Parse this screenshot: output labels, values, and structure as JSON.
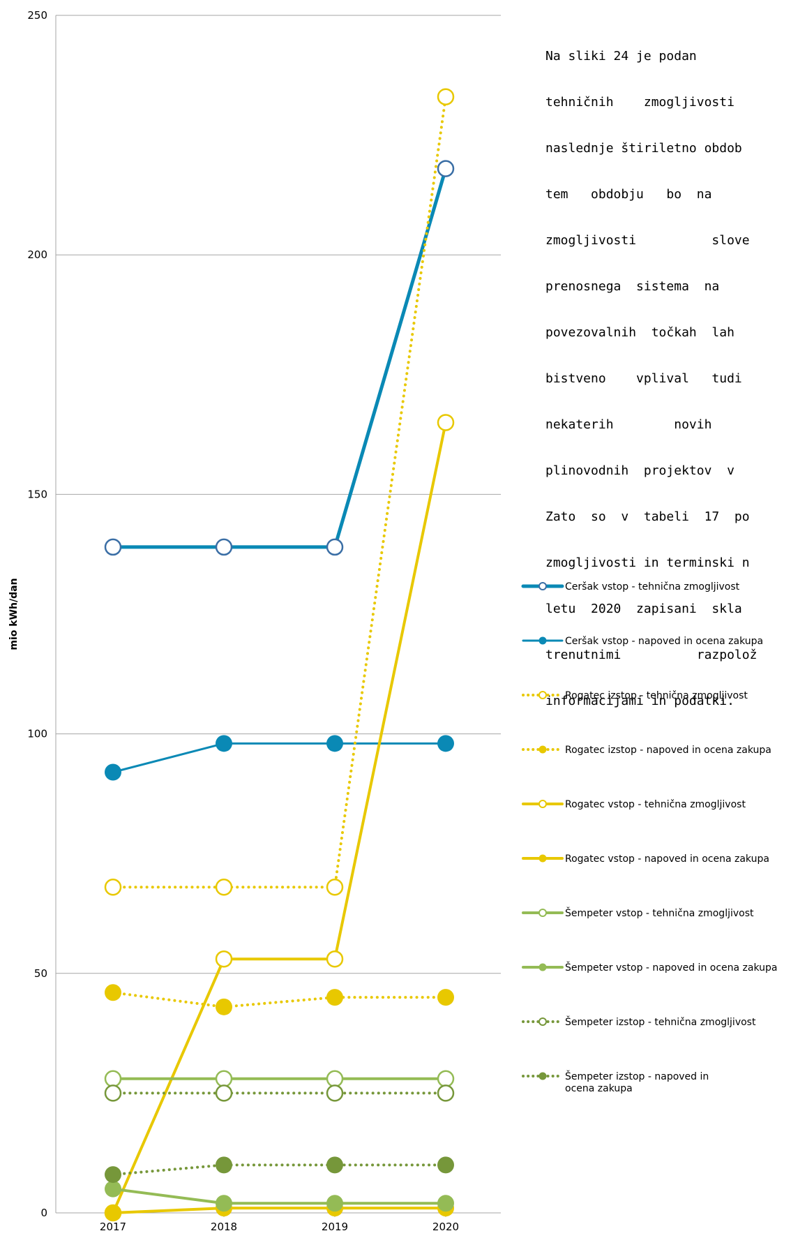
{
  "paragraph": [
    "Na sliki 24 je podan",
    "tehničnih    zmogljivosti",
    "naslednje štiriletno obdob",
    "tem   obdobju   bo  na",
    "zmogljivosti          slove",
    "prenosnega  sistema  na",
    "povezovalnih  točkah  lah",
    "bistveno    vplival   tudi",
    "nekaterih        novih",
    "plinovodnih  projektov  v",
    "Zato  so  v  tabeli  17  po",
    "zmogljivosti in terminski n",
    "letu  2020  zapisani  skla",
    "trenutnimi          razpolož",
    "informacijami in podatki."
  ],
  "colors": {
    "blue_outline": "#3a6ea5",
    "blue": "#0a89b5",
    "yellow": "#e8c800",
    "light_green": "#94bb55",
    "dark_green": "#76973a",
    "grid": "#a6a6a6"
  },
  "chart_data": {
    "type": "line",
    "ylabel": "mio kWh/dan",
    "xlabel": "",
    "categories": [
      "2017",
      "2018",
      "2019",
      "2020"
    ],
    "ylim": [
      0,
      250
    ],
    "yticks": [
      0,
      50,
      100,
      150,
      200,
      250
    ],
    "grid": true,
    "legend_position": "right",
    "series": [
      {
        "name": "Ceršak vstop - tehnična zmogljivost",
        "values": [
          139,
          139,
          139,
          218
        ],
        "color": "#0a89b5",
        "dash": "solid",
        "marker": "hollow",
        "marker_color": "#3a6ea5",
        "width": 5
      },
      {
        "name": "Ceršak vstop - napoved in ocena zakupa",
        "values": [
          92,
          98,
          98,
          98
        ],
        "color": "#0a89b5",
        "dash": "solid",
        "marker": "filled",
        "marker_color": "#0a89b5",
        "width": 3
      },
      {
        "name": "Rogatec izstop - tehnična zmogljivost",
        "values": [
          68,
          68,
          68,
          233
        ],
        "color": "#e8c800",
        "dash": "dotted",
        "marker": "hollow",
        "marker_color": "#e8c800",
        "width": 4
      },
      {
        "name": "Rogatec izstop - napoved in ocena zakupa",
        "values": [
          46,
          43,
          45,
          45
        ],
        "color": "#e8c800",
        "dash": "dotted",
        "marker": "filled",
        "marker_color": "#e8c800",
        "width": 4
      },
      {
        "name": "Rogatec vstop - tehnična zmogljivost",
        "values": [
          0,
          53,
          53,
          165
        ],
        "color": "#e8c800",
        "dash": "solid",
        "marker": "hollow",
        "marker_color": "#e8c800",
        "width": 4
      },
      {
        "name": "Rogatec vstop - napoved in ocena zakupa",
        "values": [
          0,
          1,
          1,
          1
        ],
        "color": "#e8c800",
        "dash": "solid",
        "marker": "filled",
        "marker_color": "#e8c800",
        "width": 4
      },
      {
        "name": "Šempeter vstop - tehnična zmogljivost",
        "values": [
          28,
          28,
          28,
          28
        ],
        "color": "#94bb55",
        "dash": "solid",
        "marker": "hollow",
        "marker_color": "#94bb55",
        "width": 4
      },
      {
        "name": "Šempeter vstop - napoved in ocena zakupa",
        "values": [
          5,
          2,
          2,
          2
        ],
        "color": "#94bb55",
        "dash": "solid",
        "marker": "filled",
        "marker_color": "#94bb55",
        "width": 4
      },
      {
        "name": "Šempeter izstop - tehnična zmogljivost",
        "values": [
          25,
          25,
          25,
          25
        ],
        "color": "#76973a",
        "dash": "dotted",
        "marker": "hollow",
        "marker_color": "#76973a",
        "width": 4
      },
      {
        "name": "Šempeter izstop - napoved in ocena zakupa",
        "values": [
          8,
          10,
          10,
          10
        ],
        "color": "#76973a",
        "dash": "dotted",
        "marker": "filled",
        "marker_color": "#76973a",
        "width": 4
      }
    ]
  }
}
